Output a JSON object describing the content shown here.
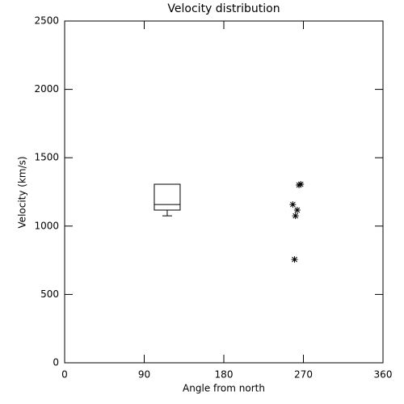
{
  "chart_data": [
    {
      "type": "box",
      "title": "Velocity distribution",
      "x_label": "Angle from north",
      "y_label": "Velocity (km/s)",
      "xlim": [
        0,
        360
      ],
      "xticks": [
        0,
        90,
        180,
        270,
        360
      ],
      "ylim": [
        0,
        2500
      ],
      "yticks": [
        0,
        500,
        1000,
        1500,
        2000,
        2500
      ],
      "color": "#000000",
      "boxes": [
        {
          "x": 116,
          "min": 1075,
          "q1": 1117,
          "median": 1158,
          "q3": 1306,
          "max": 1306
        }
      ]
    },
    {
      "type": "scatter",
      "color": "#000000",
      "x": [
        267,
        265,
        258,
        263,
        261,
        260
      ],
      "y": [
        1306,
        1300,
        1158,
        1117,
        1075,
        756
      ]
    }
  ]
}
